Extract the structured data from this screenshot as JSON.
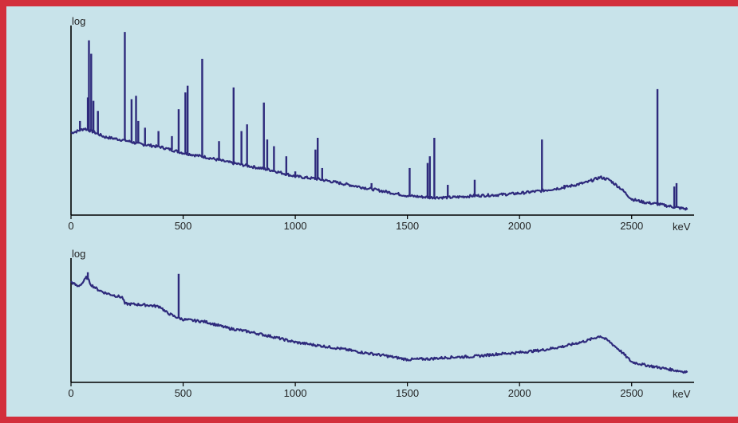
{
  "colors": {
    "border": "#d32f3c",
    "background": "#c8e3ea",
    "line": "#2e2a7c"
  },
  "chart_data": [
    {
      "type": "line",
      "ylabel": "log",
      "xunit": "keV",
      "xlim": [
        0,
        2750
      ],
      "xticks": [
        0,
        500,
        1000,
        1500,
        2000,
        2500
      ],
      "grid": false,
      "baseline": [
        [
          0,
          4.9
        ],
        [
          30,
          5.0
        ],
        [
          60,
          5.15
        ],
        [
          100,
          4.95
        ],
        [
          150,
          4.65
        ],
        [
          240,
          4.45
        ],
        [
          300,
          4.25
        ],
        [
          400,
          4.05
        ],
        [
          500,
          3.7
        ],
        [
          600,
          3.45
        ],
        [
          700,
          3.15
        ],
        [
          800,
          2.9
        ],
        [
          900,
          2.65
        ],
        [
          1000,
          2.3
        ],
        [
          1100,
          2.15
        ],
        [
          1200,
          1.9
        ],
        [
          1300,
          1.65
        ],
        [
          1400,
          1.4
        ],
        [
          1500,
          1.15
        ],
        [
          1600,
          1.05
        ],
        [
          1700,
          1.05
        ],
        [
          1800,
          1.15
        ],
        [
          1900,
          1.2
        ],
        [
          2000,
          1.3
        ],
        [
          2100,
          1.45
        ],
        [
          2200,
          1.65
        ],
        [
          2300,
          1.95
        ],
        [
          2360,
          2.25
        ],
        [
          2400,
          2.1
        ],
        [
          2450,
          1.6
        ],
        [
          2500,
          0.95
        ],
        [
          2560,
          0.75
        ],
        [
          2620,
          0.65
        ],
        [
          2700,
          0.45
        ],
        [
          2750,
          0.35
        ]
      ],
      "peaks": [
        [
          40,
          5.6
        ],
        [
          75,
          7.0
        ],
        [
          80,
          10.4
        ],
        [
          90,
          9.6
        ],
        [
          100,
          6.8
        ],
        [
          120,
          6.2
        ],
        [
          240,
          10.9
        ],
        [
          270,
          6.9
        ],
        [
          290,
          7.1
        ],
        [
          300,
          5.6
        ],
        [
          330,
          5.2
        ],
        [
          390,
          5.0
        ],
        [
          450,
          4.7
        ],
        [
          480,
          6.3
        ],
        [
          510,
          7.3
        ],
        [
          520,
          7.7
        ],
        [
          585,
          9.3
        ],
        [
          660,
          4.4
        ],
        [
          725,
          7.6
        ],
        [
          760,
          5.0
        ],
        [
          785,
          5.4
        ],
        [
          860,
          6.7
        ],
        [
          875,
          4.5
        ],
        [
          905,
          4.1
        ],
        [
          960,
          3.5
        ],
        [
          1000,
          2.6
        ],
        [
          1090,
          3.9
        ],
        [
          1100,
          4.6
        ],
        [
          1120,
          2.8
        ],
        [
          1340,
          1.9
        ],
        [
          1510,
          2.8
        ],
        [
          1590,
          3.1
        ],
        [
          1600,
          3.5
        ],
        [
          1620,
          4.6
        ],
        [
          1680,
          1.8
        ],
        [
          1800,
          2.1
        ],
        [
          2100,
          4.5
        ],
        [
          2200,
          1.8
        ],
        [
          2615,
          7.5
        ],
        [
          2690,
          1.7
        ],
        [
          2700,
          1.9
        ]
      ]
    },
    {
      "type": "line",
      "ylabel": "log",
      "xunit": "keV",
      "xlim": [
        0,
        2750
      ],
      "xticks": [
        0,
        500,
        1000,
        1500,
        2000,
        2500
      ],
      "grid": false,
      "baseline": [
        [
          0,
          6.4
        ],
        [
          30,
          6.1
        ],
        [
          50,
          6.3
        ],
        [
          70,
          6.7
        ],
        [
          90,
          6.2
        ],
        [
          120,
          5.9
        ],
        [
          150,
          5.7
        ],
        [
          200,
          5.5
        ],
        [
          230,
          5.4
        ],
        [
          240,
          5.0
        ],
        [
          300,
          4.95
        ],
        [
          350,
          4.9
        ],
        [
          400,
          4.8
        ],
        [
          420,
          4.5
        ],
        [
          460,
          4.2
        ],
        [
          480,
          4.1
        ],
        [
          500,
          4.0
        ],
        [
          600,
          3.85
        ],
        [
          700,
          3.45
        ],
        [
          800,
          3.2
        ],
        [
          900,
          2.9
        ],
        [
          1000,
          2.55
        ],
        [
          1100,
          2.35
        ],
        [
          1200,
          2.15
        ],
        [
          1300,
          1.9
        ],
        [
          1400,
          1.7
        ],
        [
          1500,
          1.45
        ],
        [
          1600,
          1.5
        ],
        [
          1700,
          1.6
        ],
        [
          1800,
          1.65
        ],
        [
          1900,
          1.8
        ],
        [
          2000,
          1.9
        ],
        [
          2100,
          2.05
        ],
        [
          2200,
          2.3
        ],
        [
          2300,
          2.65
        ],
        [
          2360,
          2.95
        ],
        [
          2400,
          2.6
        ],
        [
          2450,
          2.0
        ],
        [
          2500,
          1.3
        ],
        [
          2560,
          1.1
        ],
        [
          2620,
          0.95
        ],
        [
          2700,
          0.75
        ],
        [
          2750,
          0.65
        ]
      ],
      "peaks": [
        [
          75,
          7.0
        ],
        [
          480,
          6.9
        ]
      ]
    }
  ],
  "charts": [
    {
      "ylabel": "log",
      "xunit": "keV",
      "tick_labels": [
        "0",
        "500",
        "1000",
        "1500",
        "2000",
        "2500"
      ]
    },
    {
      "ylabel": "log",
      "xunit": "keV",
      "tick_labels": [
        "0",
        "500",
        "1000",
        "1500",
        "2000",
        "2500"
      ]
    }
  ]
}
